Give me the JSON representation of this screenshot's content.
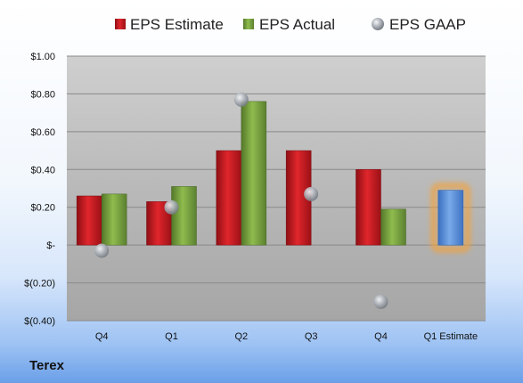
{
  "company": "Terex",
  "colors": {
    "estimate": "#c4151c",
    "actual": "#6f9a35",
    "gaap": "#9aa0a8",
    "forecast": "#4f87d6",
    "forecast_glow": "#f2a23c"
  },
  "chart_data": {
    "type": "bar",
    "categories": [
      "Q4",
      "Q1",
      "Q2",
      "Q3",
      "Q4",
      "Q1 Estimate"
    ],
    "series": [
      {
        "name": "EPS Estimate",
        "kind": "bar",
        "values": [
          0.26,
          0.23,
          0.5,
          0.5,
          0.4,
          null
        ]
      },
      {
        "name": "EPS Actual",
        "kind": "bar",
        "values": [
          0.27,
          0.31,
          0.76,
          null,
          0.19,
          0.29
        ]
      },
      {
        "name": "EPS GAAP",
        "kind": "marker",
        "values": [
          -0.03,
          0.2,
          0.77,
          0.27,
          -0.3,
          null
        ]
      }
    ],
    "highlight": {
      "category": "Q1 Estimate",
      "style": "forecast"
    },
    "yticks": [
      1.0,
      0.8,
      0.6,
      0.4,
      0.2,
      0,
      -0.2,
      -0.4
    ],
    "ytick_labels": [
      "$1.00",
      "$0.80",
      "$0.60",
      "$0.40",
      "$0.20",
      "$-",
      "$(0.20)",
      "$(0.40)"
    ],
    "ylim": [
      -0.4,
      1.0
    ],
    "grid": true,
    "legend_position": "top"
  }
}
